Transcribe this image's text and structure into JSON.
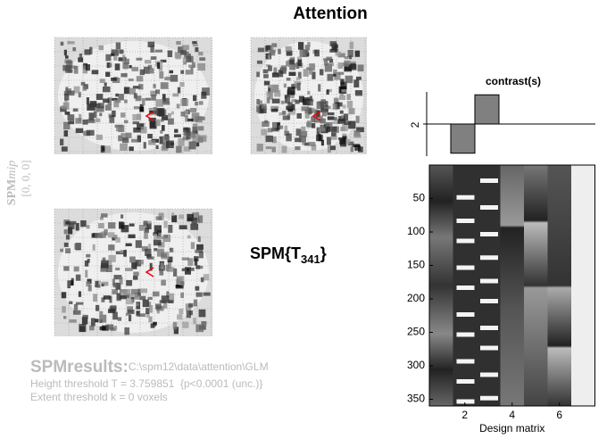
{
  "title": "Attention",
  "mip": {
    "name": "SPM",
    "suffix": "mip",
    "coords": "[0, 0, 0]"
  },
  "statistic": {
    "prefix": "SPM{T",
    "subscript": "341",
    "suffix": "}"
  },
  "contrast": {
    "title": "contrast(s)",
    "label": "2",
    "weights": [
      0,
      -1,
      1,
      0,
      0,
      0,
      0
    ],
    "xlim": [
      0.5,
      7.5
    ],
    "ylim": [
      -1.1,
      1.1
    ],
    "color": "#808080"
  },
  "design_matrix": {
    "xlabel": "Design matrix",
    "xlim": [
      0.5,
      7.5
    ],
    "xticks": [
      2,
      4,
      6
    ],
    "ylim": [
      0,
      360
    ],
    "yticks": [
      50,
      100,
      150,
      200,
      250,
      300,
      350
    ]
  },
  "results": {
    "heading": "SPMresults:",
    "path": "C:\\spm12\\data\\attention\\GLM",
    "height": "Height threshold T = 3.759851  {p<0.0001 (unc.)}",
    "extent": "Extent threshold k = 0 voxels"
  }
}
